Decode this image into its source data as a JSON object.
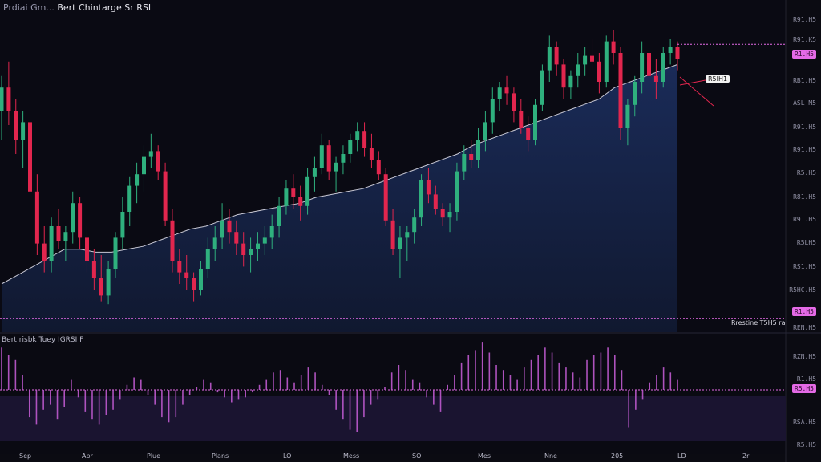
{
  "header": {
    "title_prefix": "Prdiai Gm...",
    "title_main": "Bert Chintarge Sr RSI"
  },
  "indicator_title": "Bert risbk Tuey IGRSI F",
  "price_axis_labels": [
    "R91.H5",
    "R91.K5",
    "RB1.H5",
    "ASL M5",
    "R91.H5",
    "R91.H5",
    "R5.H5",
    "R81.H5",
    "R91.H5",
    "R5LH5",
    "RS1.H5",
    "R5HC.H5",
    "REN.H5"
  ],
  "rsi_axis_labels": [
    "RZN.H5",
    "R1.H5",
    "RSA.H5",
    "R5.H5"
  ],
  "pills": {
    "upper": "R1.H5",
    "lower": "R1.H5",
    "rsi": "R5.H5"
  },
  "callout_label": "R5IH1",
  "bottom_label": "Rrestine T5H5 ra",
  "x_labels": [
    "Sep",
    "Apr",
    "Plue",
    "Plans",
    "LO",
    "Mess",
    "SO",
    "Mes",
    "Nne",
    "205",
    "LD",
    "2rl"
  ],
  "colors": {
    "up": "#2fb07e",
    "down": "#e2264e",
    "ma": "#c8c8d4",
    "area": "#16244a",
    "rsi": "#c05ad0",
    "pill": "#e46ae6"
  },
  "chart_data": {
    "type": "candlestick",
    "ohlc": [
      [
        0.7,
        0.82,
        0.6,
        0.78
      ],
      [
        0.78,
        0.87,
        0.65,
        0.7
      ],
      [
        0.7,
        0.74,
        0.55,
        0.6
      ],
      [
        0.6,
        0.7,
        0.5,
        0.66
      ],
      [
        0.66,
        0.68,
        0.38,
        0.42
      ],
      [
        0.42,
        0.48,
        0.2,
        0.24
      ],
      [
        0.24,
        0.3,
        0.14,
        0.18
      ],
      [
        0.18,
        0.33,
        0.14,
        0.3
      ],
      [
        0.3,
        0.36,
        0.22,
        0.25
      ],
      [
        0.25,
        0.3,
        0.18,
        0.28
      ],
      [
        0.28,
        0.42,
        0.24,
        0.38
      ],
      [
        0.38,
        0.4,
        0.22,
        0.26
      ],
      [
        0.26,
        0.3,
        0.14,
        0.18
      ],
      [
        0.18,
        0.22,
        0.08,
        0.12
      ],
      [
        0.12,
        0.2,
        0.04,
        0.06
      ],
      [
        0.06,
        0.18,
        0.03,
        0.15
      ],
      [
        0.15,
        0.28,
        0.12,
        0.26
      ],
      [
        0.26,
        0.4,
        0.22,
        0.35
      ],
      [
        0.35,
        0.47,
        0.3,
        0.44
      ],
      [
        0.44,
        0.52,
        0.38,
        0.48
      ],
      [
        0.48,
        0.58,
        0.42,
        0.54
      ],
      [
        0.54,
        0.62,
        0.5,
        0.56
      ],
      [
        0.56,
        0.58,
        0.46,
        0.49
      ],
      [
        0.49,
        0.52,
        0.3,
        0.32
      ],
      [
        0.32,
        0.36,
        0.14,
        0.18
      ],
      [
        0.18,
        0.22,
        0.1,
        0.14
      ],
      [
        0.14,
        0.2,
        0.08,
        0.12
      ],
      [
        0.12,
        0.14,
        0.04,
        0.08
      ],
      [
        0.08,
        0.18,
        0.06,
        0.15
      ],
      [
        0.15,
        0.26,
        0.12,
        0.22
      ],
      [
        0.22,
        0.3,
        0.18,
        0.26
      ],
      [
        0.26,
        0.38,
        0.22,
        0.32
      ],
      [
        0.32,
        0.36,
        0.24,
        0.28
      ],
      [
        0.28,
        0.32,
        0.2,
        0.24
      ],
      [
        0.24,
        0.28,
        0.16,
        0.2
      ],
      [
        0.2,
        0.26,
        0.14,
        0.22
      ],
      [
        0.22,
        0.28,
        0.18,
        0.24
      ],
      [
        0.24,
        0.3,
        0.2,
        0.26
      ],
      [
        0.26,
        0.34,
        0.22,
        0.3
      ],
      [
        0.3,
        0.4,
        0.26,
        0.37
      ],
      [
        0.37,
        0.46,
        0.34,
        0.43
      ],
      [
        0.43,
        0.48,
        0.36,
        0.4
      ],
      [
        0.4,
        0.44,
        0.32,
        0.37
      ],
      [
        0.37,
        0.5,
        0.34,
        0.47
      ],
      [
        0.47,
        0.54,
        0.42,
        0.5
      ],
      [
        0.5,
        0.62,
        0.48,
        0.58
      ],
      [
        0.58,
        0.6,
        0.46,
        0.49
      ],
      [
        0.49,
        0.54,
        0.42,
        0.52
      ],
      [
        0.52,
        0.58,
        0.48,
        0.55
      ],
      [
        0.55,
        0.62,
        0.52,
        0.6
      ],
      [
        0.6,
        0.66,
        0.56,
        0.63
      ],
      [
        0.63,
        0.66,
        0.54,
        0.57
      ],
      [
        0.57,
        0.62,
        0.5,
        0.53
      ],
      [
        0.53,
        0.56,
        0.46,
        0.48
      ],
      [
        0.48,
        0.5,
        0.3,
        0.32
      ],
      [
        0.32,
        0.36,
        0.2,
        0.22
      ],
      [
        0.22,
        0.3,
        0.12,
        0.26
      ],
      [
        0.26,
        0.3,
        0.18,
        0.28
      ],
      [
        0.28,
        0.36,
        0.24,
        0.33
      ],
      [
        0.33,
        0.48,
        0.3,
        0.46
      ],
      [
        0.46,
        0.5,
        0.38,
        0.41
      ],
      [
        0.41,
        0.44,
        0.34,
        0.36
      ],
      [
        0.36,
        0.38,
        0.3,
        0.33
      ],
      [
        0.33,
        0.38,
        0.28,
        0.35
      ],
      [
        0.35,
        0.52,
        0.32,
        0.49
      ],
      [
        0.49,
        0.58,
        0.46,
        0.55
      ],
      [
        0.55,
        0.6,
        0.5,
        0.53
      ],
      [
        0.53,
        0.64,
        0.5,
        0.6
      ],
      [
        0.6,
        0.7,
        0.56,
        0.66
      ],
      [
        0.66,
        0.78,
        0.62,
        0.74
      ],
      [
        0.74,
        0.8,
        0.7,
        0.78
      ],
      [
        0.78,
        0.82,
        0.72,
        0.76
      ],
      [
        0.76,
        0.78,
        0.66,
        0.7
      ],
      [
        0.7,
        0.74,
        0.62,
        0.64
      ],
      [
        0.64,
        0.68,
        0.56,
        0.6
      ],
      [
        0.6,
        0.74,
        0.58,
        0.72
      ],
      [
        0.72,
        0.86,
        0.7,
        0.84
      ],
      [
        0.84,
        0.96,
        0.8,
        0.92
      ],
      [
        0.92,
        0.94,
        0.82,
        0.86
      ],
      [
        0.86,
        0.88,
        0.74,
        0.78
      ],
      [
        0.78,
        0.84,
        0.74,
        0.82
      ],
      [
        0.82,
        0.9,
        0.78,
        0.86
      ],
      [
        0.86,
        0.92,
        0.82,
        0.89
      ],
      [
        0.89,
        0.95,
        0.84,
        0.87
      ],
      [
        0.87,
        0.9,
        0.76,
        0.8
      ],
      [
        0.8,
        0.96,
        0.78,
        0.94
      ],
      [
        0.94,
        0.98,
        0.86,
        0.9
      ],
      [
        0.9,
        0.92,
        0.6,
        0.64
      ],
      [
        0.64,
        0.74,
        0.58,
        0.72
      ],
      [
        0.72,
        0.82,
        0.68,
        0.8
      ],
      [
        0.8,
        0.94,
        0.76,
        0.9
      ],
      [
        0.9,
        0.92,
        0.78,
        0.82
      ],
      [
        0.82,
        0.88,
        0.74,
        0.8
      ],
      [
        0.8,
        0.92,
        0.78,
        0.9
      ],
      [
        0.9,
        0.95,
        0.86,
        0.92
      ],
      [
        0.92,
        0.94,
        0.84,
        0.88
      ]
    ],
    "ma": [
      0.1,
      0.13,
      0.16,
      0.19,
      0.22,
      0.22,
      0.21,
      0.21,
      0.22,
      0.23,
      0.25,
      0.27,
      0.29,
      0.3,
      0.32,
      0.34,
      0.35,
      0.36,
      0.37,
      0.38,
      0.4,
      0.41,
      0.42,
      0.43,
      0.45,
      0.47,
      0.49,
      0.51,
      0.53,
      0.55,
      0.58,
      0.6,
      0.62,
      0.64,
      0.66,
      0.68,
      0.7,
      0.72,
      0.74,
      0.78,
      0.8,
      0.82,
      0.84,
      0.86
    ],
    "rsi": [
      0.85,
      0.7,
      0.6,
      0.3,
      -0.55,
      -0.7,
      -0.4,
      -0.3,
      -0.6,
      -0.35,
      0.2,
      -0.15,
      -0.45,
      -0.6,
      -0.7,
      -0.5,
      -0.4,
      -0.2,
      0.1,
      0.25,
      0.2,
      -0.1,
      -0.3,
      -0.55,
      -0.65,
      -0.55,
      -0.3,
      -0.1,
      0.05,
      0.2,
      0.15,
      -0.05,
      -0.15,
      -0.25,
      -0.2,
      -0.15,
      -0.05,
      0.1,
      0.2,
      0.35,
      0.4,
      0.25,
      0.15,
      0.3,
      0.45,
      0.35,
      0.1,
      -0.1,
      -0.4,
      -0.6,
      -0.8,
      -0.85,
      -0.55,
      -0.3,
      -0.2,
      0.05,
      0.35,
      0.5,
      0.4,
      0.2,
      0.15,
      -0.15,
      -0.3,
      -0.45,
      0.1,
      0.3,
      0.55,
      0.7,
      0.8,
      0.95,
      0.75,
      0.5,
      0.4,
      0.3,
      0.2,
      0.45,
      0.6,
      0.7,
      0.85,
      0.75,
      0.55,
      0.45,
      0.35,
      0.25,
      0.6,
      0.7,
      0.75,
      0.85,
      0.7,
      0.4,
      -0.75,
      -0.4,
      -0.2,
      0.15,
      0.3,
      0.45,
      0.35,
      0.2
    ],
    "title": "Bert Chintarge Sr RSI",
    "x_tick_labels": [
      "Sep",
      "Apr",
      "Plue",
      "Plans",
      "LO",
      "Mess",
      "SO",
      "Mes",
      "Nne",
      "205",
      "LD",
      "2rl"
    ],
    "upper_level": 0.93,
    "lower_level": -0.02,
    "rsi_level": 0.0
  }
}
